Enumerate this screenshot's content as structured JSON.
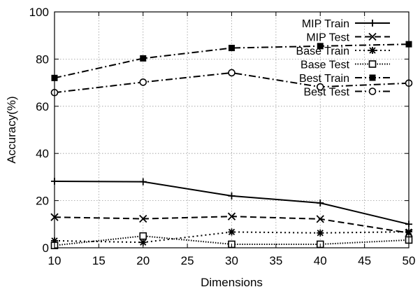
{
  "chart_data": {
    "type": "line",
    "title": "",
    "xlabel": "Dimensions",
    "ylabel": "Accuracy(%)",
    "xlim": [
      10,
      50
    ],
    "ylim": [
      0,
      100
    ],
    "xticks": [
      10,
      15,
      20,
      25,
      30,
      35,
      40,
      45,
      50
    ],
    "yticks": [
      0,
      20,
      40,
      60,
      80,
      100
    ],
    "grid": true,
    "legend_position": "top-right",
    "x": [
      10,
      20,
      30,
      40,
      50
    ],
    "series": [
      {
        "name": "MIP Train",
        "values": [
          28.2,
          28.0,
          22.0,
          19.0,
          10.0
        ],
        "marker": "plus",
        "dash": "solid",
        "color": "#000000"
      },
      {
        "name": "MIP Test",
        "values": [
          13.0,
          12.3,
          13.3,
          12.2,
          6.3
        ],
        "marker": "cross",
        "dash": "dashed",
        "color": "#000000"
      },
      {
        "name": "Base Train",
        "values": [
          3.0,
          2.3,
          6.7,
          6.3,
          6.8
        ],
        "marker": "star",
        "dash": "dotted",
        "color": "#000000"
      },
      {
        "name": "Base Test",
        "values": [
          1.0,
          5.0,
          1.5,
          1.5,
          3.3
        ],
        "marker": "open-square",
        "dash": "densedot",
        "color": "#000000"
      },
      {
        "name": "Best Train",
        "values": [
          72.0,
          80.3,
          84.7,
          85.5,
          86.3
        ],
        "marker": "filled-square",
        "dash": "dashdot",
        "color": "#000000"
      },
      {
        "name": "Best Test",
        "values": [
          65.8,
          70.2,
          74.2,
          68.2,
          69.8
        ],
        "marker": "open-circle",
        "dash": "dashdot",
        "color": "#000000"
      }
    ]
  }
}
